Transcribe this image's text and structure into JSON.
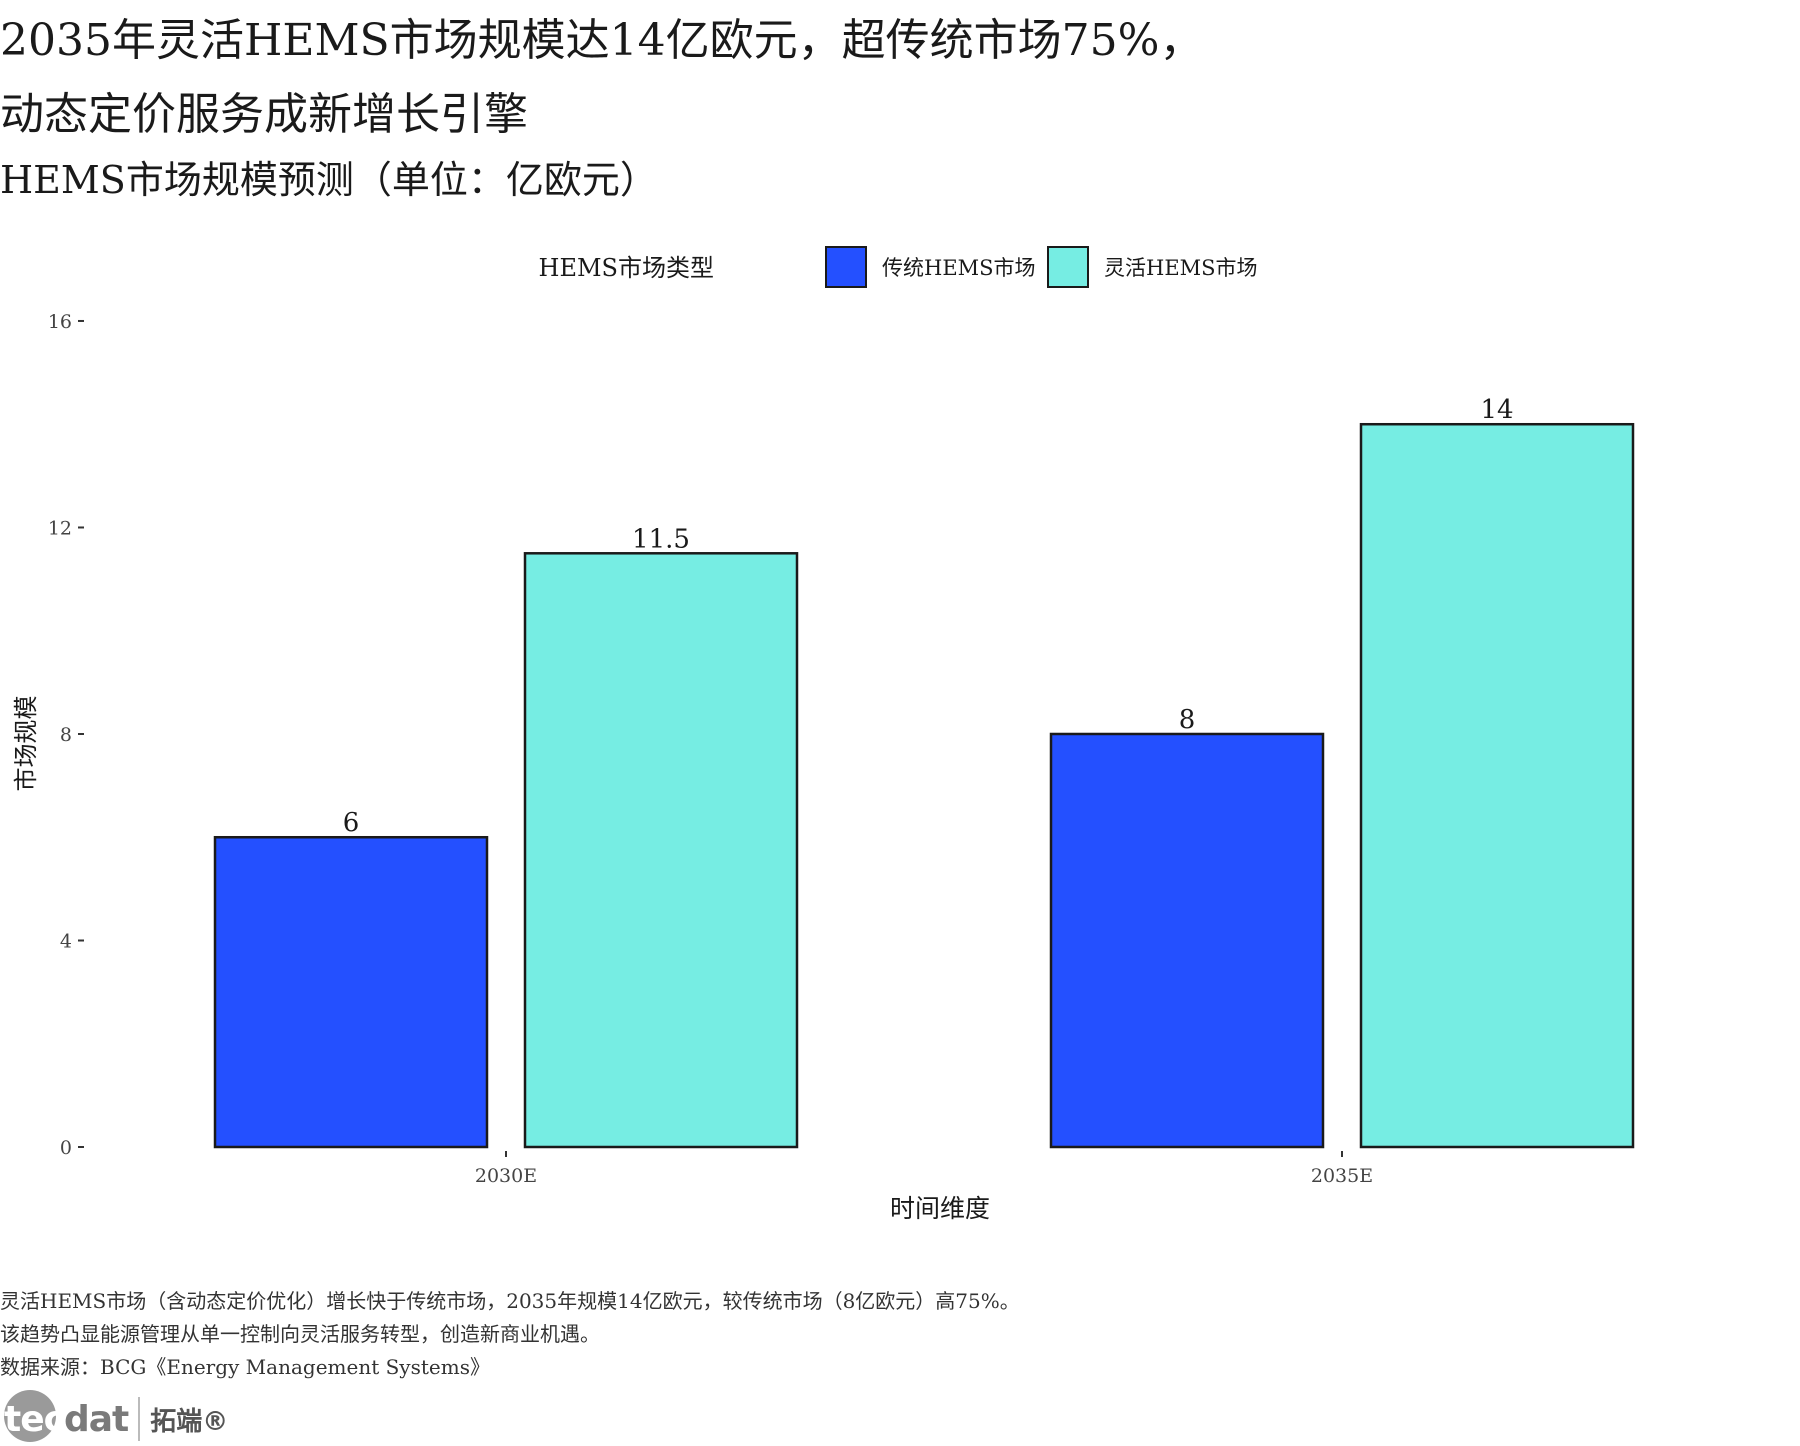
{
  "header": {
    "title_line1": "2035年灵活HEMS市场规模达14亿欧元，超传统市场75%，",
    "title_line2": "动态定价服务成新增长引擎",
    "subtitle": "HEMS市场规模预测（单位：亿欧元）"
  },
  "legend": {
    "title": "HEMS市场类型",
    "placement": "top-center"
  },
  "chart_data": {
    "type": "bar",
    "categories": [
      "2030E",
      "2035E"
    ],
    "series": [
      {
        "name": "传统HEMS市场",
        "values": [
          6,
          8
        ],
        "labels": [
          "6",
          "8"
        ],
        "color": "#2450ff"
      },
      {
        "name": "灵活HEMS市场",
        "values": [
          11.5,
          14
        ],
        "labels": [
          "11.5",
          "14"
        ],
        "color": "#76ede3"
      }
    ],
    "xlabel": "时间维度",
    "ylabel": "市场规模",
    "ylim": [
      0,
      16.6
    ],
    "yticks": [
      0,
      4,
      8,
      12,
      16
    ],
    "grid": false
  },
  "footer": {
    "note_line1": "灵活HEMS市场（含动态定价优化）增长快于传统市场，2035年规模14亿欧元，较传统市场（8亿欧元）高75%。",
    "note_line2": "该趋势凸显能源管理从单一控制向灵活服务转型，创造新商业机遇。",
    "source": "数据来源：BCG《Energy Management Systems》"
  },
  "logo": {
    "text_tec": "tec",
    "text_dat": "dat",
    "text_cn": "拓端®"
  }
}
